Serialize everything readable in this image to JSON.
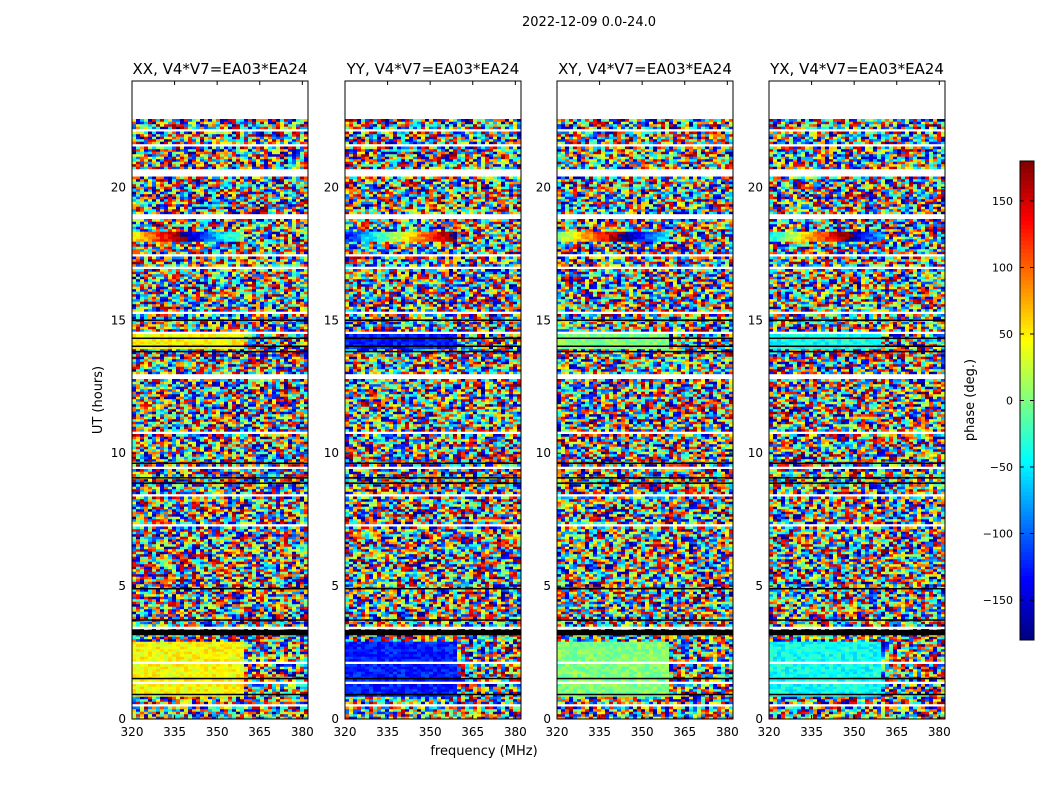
{
  "figure": {
    "suptitle": "2022-12-09 0.0-24.0",
    "xlabel": "frequency (MHz)",
    "ylabel": "UT (hours)"
  },
  "colorbar": {
    "label": "phase (deg.)",
    "range": [
      -180,
      180
    ],
    "ticks": [
      "150",
      "100",
      "50",
      "0",
      "−50",
      "−100",
      "−150"
    ],
    "tick_values": [
      150,
      100,
      50,
      0,
      -50,
      -100,
      -150
    ],
    "colormap": [
      "#00007f",
      "#0000ff",
      "#007fff",
      "#00ffff",
      "#7fff7f",
      "#ffff00",
      "#ff7f00",
      "#ff0000",
      "#7f0000"
    ]
  },
  "chart_data": {
    "type": "heatmap",
    "x_range": [
      320,
      382
    ],
    "y_range": [
      0,
      24
    ],
    "x_ticks": [
      "320",
      "335",
      "350",
      "365",
      "380"
    ],
    "x_tick_values": [
      320,
      335,
      350,
      365,
      380
    ],
    "y_ticks": [
      "0",
      "5",
      "10",
      "15",
      "20"
    ],
    "y_tick_values": [
      0,
      5,
      10,
      15,
      20
    ],
    "data_extent_hours": [
      0,
      22.6
    ],
    "panels": [
      {
        "title": "XX, V4*V7=EA03*EA24",
        "structured_phase": 45
      },
      {
        "title": "YY, V4*V7=EA03*EA24",
        "structured_phase": -125
      },
      {
        "title": "XY, V4*V7=EA03*EA24",
        "structured_phase": 0
      },
      {
        "title": "YX, V4*V7=EA03*EA24",
        "structured_phase": -40
      }
    ]
  }
}
